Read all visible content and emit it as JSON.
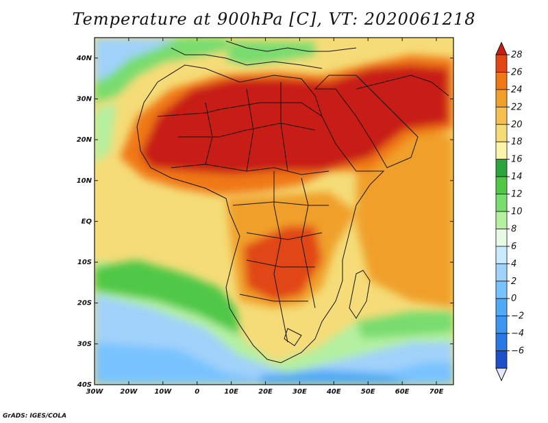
{
  "title": "Temperature at 900hPa [C], VT: 2020061218",
  "credit": "GrADS: IGES/COLA",
  "map": {
    "region": "Africa",
    "lon_range": [
      -30,
      75
    ],
    "lat_range": [
      -40,
      45
    ],
    "lat_ticks": [
      {
        "lat": 40,
        "label": "40N"
      },
      {
        "lat": 30,
        "label": "30N"
      },
      {
        "lat": 20,
        "label": "20N"
      },
      {
        "lat": 10,
        "label": "10N"
      },
      {
        "lat": 0,
        "label": "EQ"
      },
      {
        "lat": -10,
        "label": "10S"
      },
      {
        "lat": -20,
        "label": "20S"
      },
      {
        "lat": -30,
        "label": "30S"
      },
      {
        "lat": -40,
        "label": "40S"
      }
    ],
    "lon_ticks": [
      {
        "lon": -30,
        "label": "30W"
      },
      {
        "lon": -20,
        "label": "20W"
      },
      {
        "lon": -10,
        "label": "10W"
      },
      {
        "lon": 0,
        "label": "0"
      },
      {
        "lon": 10,
        "label": "10E"
      },
      {
        "lon": 20,
        "label": "20E"
      },
      {
        "lon": 30,
        "label": "30E"
      },
      {
        "lon": 40,
        "label": "40E"
      },
      {
        "lon": 50,
        "label": "50E"
      },
      {
        "lon": 60,
        "label": "60E"
      },
      {
        "lon": 70,
        "label": "70E"
      }
    ]
  },
  "colorbar": {
    "min": -6,
    "max": 28,
    "step": 2,
    "labels": [
      "28",
      "26",
      "24",
      "22",
      "20",
      "18",
      "16",
      "14",
      "12",
      "10",
      "8",
      "6",
      "4",
      "2",
      "0",
      "−2",
      "−4",
      "−6"
    ],
    "colors": [
      "#1e1e8c",
      "#1e50c8",
      "#2878e6",
      "#3c96f0",
      "#50aaf5",
      "#78c3ff",
      "#a0d2fa",
      "#c8ebff",
      "#e6fae6",
      "#b4f0a0",
      "#78dc6e",
      "#50c846",
      "#2ea53c",
      "#faf5aa",
      "#f5dc78",
      "#f5c050",
      "#f0a02a",
      "#f07814",
      "#e14614",
      "#c81e14"
    ]
  }
}
